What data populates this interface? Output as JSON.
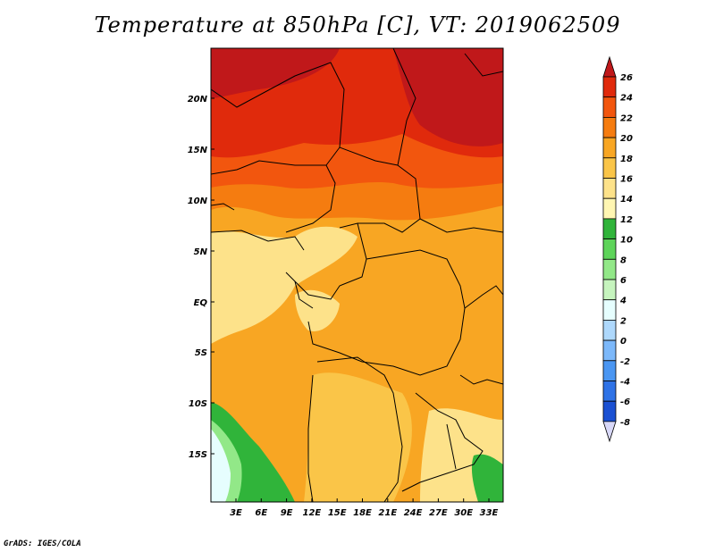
{
  "title": "Temperature at 850hPa [C], VT: 2019062509",
  "credit": "GrADS: IGES/COLA",
  "lat_labels": [
    "20N",
    "15N",
    "10N",
    "5N",
    "EQ",
    "5S",
    "10S",
    "15S"
  ],
  "lon_labels": [
    "3E",
    "6E",
    "9E",
    "12E",
    "15E",
    "18E",
    "21E",
    "24E",
    "27E",
    "30E",
    "33E"
  ],
  "colorbar": {
    "labels": [
      "26",
      "24",
      "22",
      "20",
      "18",
      "16",
      "14",
      "12",
      "10",
      "8",
      "6",
      "4",
      "2",
      "0",
      "-2",
      "-4",
      "-6",
      "-8"
    ],
    "colors": [
      "#c0181a",
      "#e02a0c",
      "#f2560e",
      "#f57c10",
      "#f8a623",
      "#fac548",
      "#fde28a",
      "#fff6b2",
      "#30b43a",
      "#5ed45a",
      "#92e888",
      "#c6f4be",
      "#e6fefe",
      "#aed8fc",
      "#7cb8fa",
      "#4a96f2",
      "#2e72e6",
      "#1a50d2",
      "#0c30b4",
      "#08137c"
    ],
    "over_color": "#c0181a",
    "under_color": "#d8d8f8"
  }
}
